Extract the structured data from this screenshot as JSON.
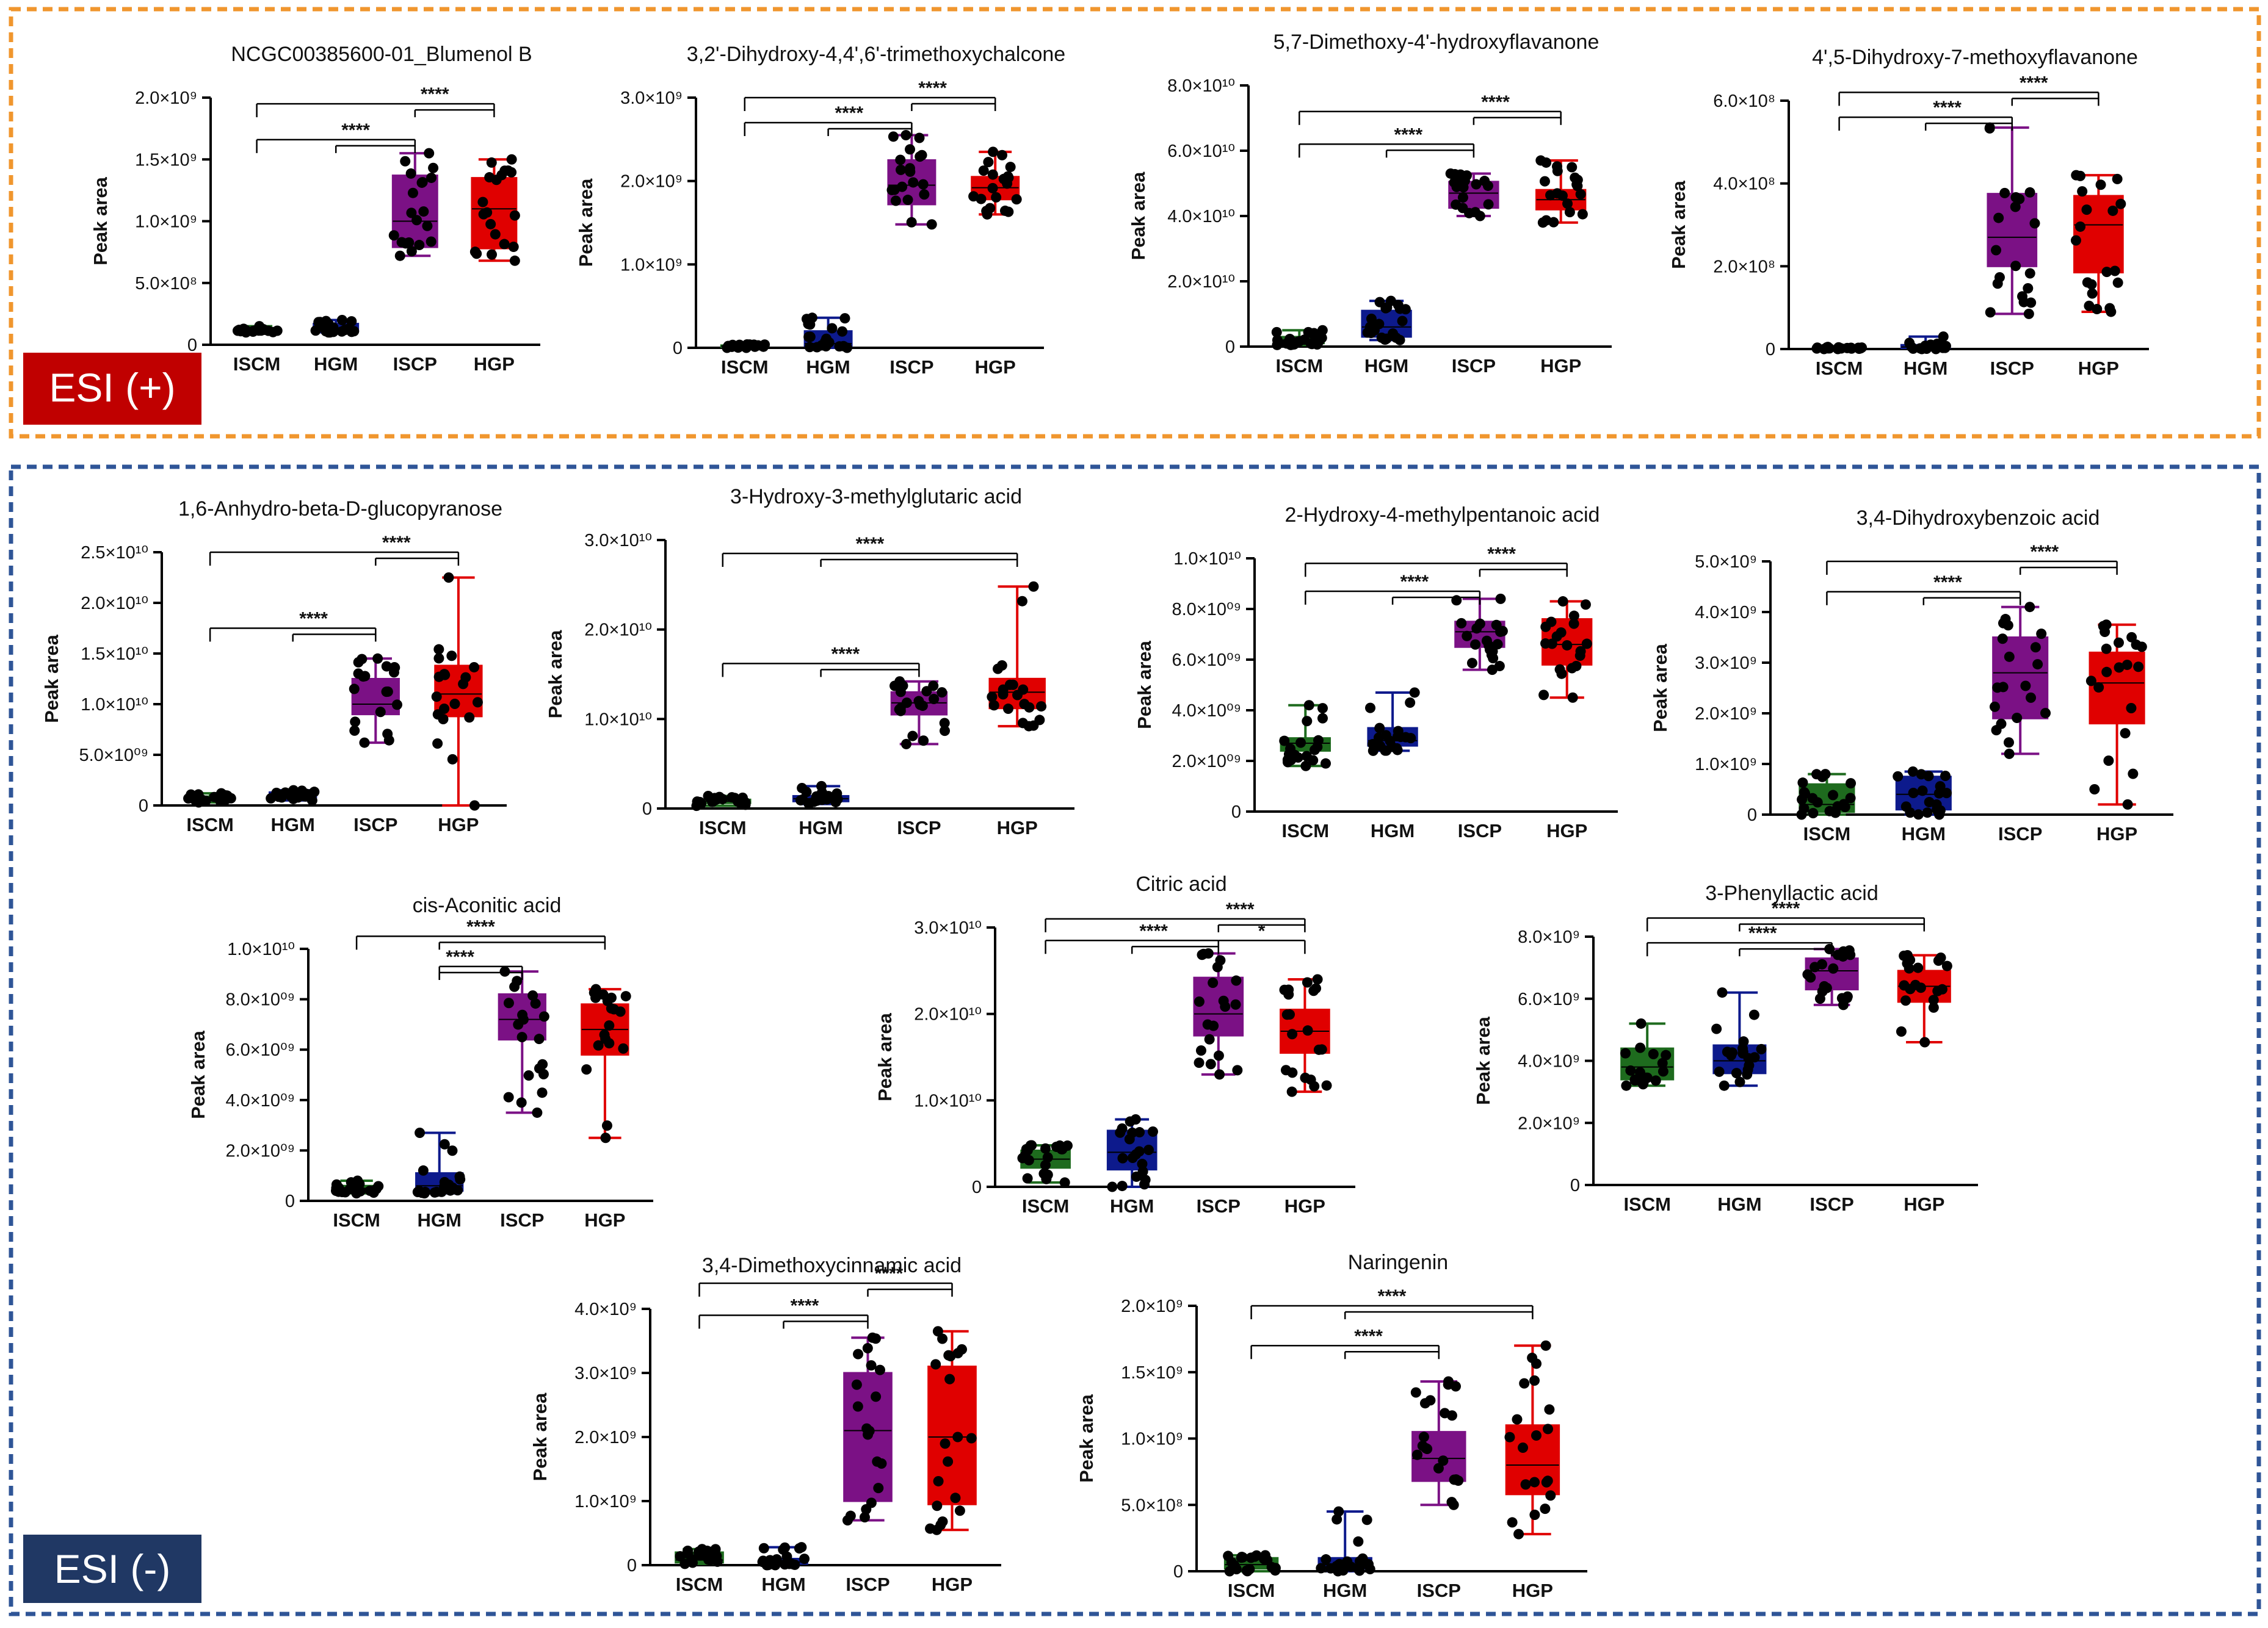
{
  "sections": {
    "pos": {
      "label": "ESI (+)",
      "border_color": "#f0962e",
      "label_bg": "#c00000"
    },
    "neg": {
      "label": "ESI (-)",
      "border_color": "#2f5597",
      "label_bg": "#203864"
    }
  },
  "common": {
    "ylabel": "Peak area",
    "categories": [
      "ISCM",
      "HGM",
      "ISCP",
      "HGP"
    ],
    "group_colors": [
      "#1e6b1e",
      "#0d1a8c",
      "#7b1185",
      "#e00000"
    ]
  },
  "chart_data": [
    {
      "id": "c1",
      "type": "box",
      "title": "NCGC00385600-01_Blumenol B",
      "yexp": 9,
      "ylim": [
        0,
        2.0
      ],
      "ticks": [
        0,
        0.5,
        1.0,
        1.5,
        2.0
      ],
      "tick_labels": [
        "0",
        "5.0×10⁸",
        "1.0×10⁹",
        "1.5×10⁹",
        "2.0×10⁹"
      ],
      "groups": [
        {
          "min": 0.1,
          "q1": 0.11,
          "med": 0.12,
          "q3": 0.13,
          "max": 0.15
        },
        {
          "min": 0.1,
          "q1": 0.11,
          "med": 0.13,
          "q3": 0.17,
          "max": 0.2
        },
        {
          "min": 0.72,
          "q1": 0.79,
          "med": 1.0,
          "q3": 1.37,
          "max": 1.55
        },
        {
          "min": 0.68,
          "q1": 0.78,
          "med": 1.1,
          "q3": 1.35,
          "max": 1.5
        }
      ],
      "sig": [
        {
          "from": 0,
          "to": 3,
          "to2": 2,
          "level": 1.95,
          "label": "****"
        },
        {
          "from": 0,
          "to": 2,
          "to2": 1,
          "level": 1.66,
          "label": "****"
        }
      ]
    },
    {
      "id": "c2",
      "type": "box",
      "title": "3,2'-Dihydroxy-4,4',6'-trimethoxychalcone",
      "yexp": 9,
      "ylim": [
        0,
        3.0
      ],
      "ticks": [
        0,
        1.0,
        2.0,
        3.0
      ],
      "tick_labels": [
        "0",
        "1.0×10⁹",
        "2.0×10⁹",
        "3.0×10⁹"
      ],
      "groups": [
        {
          "min": 0.0,
          "q1": 0.01,
          "med": 0.02,
          "q3": 0.03,
          "max": 0.04
        },
        {
          "min": 0.0,
          "q1": 0.02,
          "med": 0.05,
          "q3": 0.2,
          "max": 0.36
        },
        {
          "min": 1.48,
          "q1": 1.72,
          "med": 1.95,
          "q3": 2.25,
          "max": 2.55
        },
        {
          "min": 1.6,
          "q1": 1.78,
          "med": 1.92,
          "q3": 2.05,
          "max": 2.35
        }
      ],
      "sig": [
        {
          "from": 0,
          "to": 3,
          "to2": 2,
          "level": 3.0,
          "label": "****"
        },
        {
          "from": 0,
          "to": 2,
          "to2": 1,
          "level": 2.7,
          "label": "****"
        }
      ]
    },
    {
      "id": "c3",
      "type": "box",
      "title": "5,7-Dimethoxy-4'-hydroxyflavanone",
      "yexp": 10,
      "ylim": [
        0,
        8.0
      ],
      "ticks": [
        0,
        2.0,
        4.0,
        6.0,
        8.0
      ],
      "tick_labels": [
        "0",
        "2.0×10¹⁰",
        "4.0×10¹⁰",
        "6.0×10¹⁰",
        "8.0×10¹⁰"
      ],
      "groups": [
        {
          "min": 0.05,
          "q1": 0.1,
          "med": 0.2,
          "q3": 0.3,
          "max": 0.5
        },
        {
          "min": 0.2,
          "q1": 0.3,
          "med": 0.6,
          "q3": 1.1,
          "max": 1.4
        },
        {
          "min": 4.0,
          "q1": 4.25,
          "med": 4.7,
          "q3": 5.05,
          "max": 5.3
        },
        {
          "min": 3.8,
          "q1": 4.2,
          "med": 4.5,
          "q3": 4.8,
          "max": 5.7
        }
      ],
      "sig": [
        {
          "from": 0,
          "to": 3,
          "to2": 2,
          "level": 7.2,
          "label": "****"
        },
        {
          "from": 0,
          "to": 2,
          "to2": 1,
          "level": 6.2,
          "label": "****"
        }
      ]
    },
    {
      "id": "c4",
      "type": "box",
      "title": "4',5-Dihydroxy-7-methoxyflavanone",
      "yexp": 8,
      "ylim": [
        0,
        6.0
      ],
      "ticks": [
        0,
        2.0,
        4.0,
        6.0
      ],
      "tick_labels": [
        "0",
        "2.0×10⁸",
        "4.0×10⁸",
        "6.0×10⁸"
      ],
      "groups": [
        {
          "min": 0.0,
          "q1": 0.01,
          "med": 0.02,
          "q3": 0.03,
          "max": 0.05
        },
        {
          "min": 0.0,
          "q1": 0.02,
          "med": 0.05,
          "q3": 0.1,
          "max": 0.3
        },
        {
          "min": 0.85,
          "q1": 2.0,
          "med": 2.7,
          "q3": 3.75,
          "max": 5.35
        },
        {
          "min": 0.9,
          "q1": 1.85,
          "med": 3.0,
          "q3": 3.7,
          "max": 4.2
        }
      ],
      "sig": [
        {
          "from": 0,
          "to": 3,
          "to2": 2,
          "level": 6.2,
          "label": "****"
        },
        {
          "from": 0,
          "to": 2,
          "to2": 1,
          "level": 5.6,
          "label": "****"
        }
      ]
    },
    {
      "id": "c5",
      "type": "box",
      "title": "1,6-Anhydro-beta-D-glucopyranose",
      "yexp": 10,
      "ylim": [
        0,
        2.5
      ],
      "ticks": [
        0,
        0.5,
        1.0,
        1.5,
        2.0,
        2.5
      ],
      "tick_labels": [
        "0",
        "5.0×10⁰⁹",
        "1.0×10¹⁰",
        "1.5×10¹⁰",
        "2.0×10¹⁰",
        "2.5×10¹⁰"
      ],
      "groups": [
        {
          "min": 0.03,
          "q1": 0.05,
          "med": 0.07,
          "q3": 0.09,
          "max": 0.12
        },
        {
          "min": 0.05,
          "q1": 0.08,
          "med": 0.1,
          "q3": 0.13,
          "max": 0.15
        },
        {
          "min": 0.62,
          "q1": 0.9,
          "med": 1.0,
          "q3": 1.25,
          "max": 1.45
        },
        {
          "min": 0.0,
          "q1": 0.88,
          "med": 1.1,
          "q3": 1.38,
          "max": 2.25
        }
      ],
      "sig": [
        {
          "from": 0,
          "to": 3,
          "to2": 2,
          "level": 2.5,
          "label": "****"
        },
        {
          "from": 0,
          "to": 2,
          "to2": 1,
          "level": 1.75,
          "label": "****"
        }
      ]
    },
    {
      "id": "c6",
      "type": "box",
      "title": "3-Hydroxy-3-methylglutaric acid",
      "yexp": 10,
      "ylim": [
        0,
        3.0
      ],
      "ticks": [
        0,
        1.0,
        2.0,
        3.0
      ],
      "tick_labels": [
        "0",
        "1.0×10¹⁰",
        "2.0×10¹⁰",
        "3.0×10¹⁰"
      ],
      "groups": [
        {
          "min": 0.03,
          "q1": 0.06,
          "med": 0.08,
          "q3": 0.1,
          "max": 0.14
        },
        {
          "min": 0.05,
          "q1": 0.08,
          "med": 0.11,
          "q3": 0.14,
          "max": 0.25
        },
        {
          "min": 0.72,
          "q1": 1.05,
          "med": 1.18,
          "q3": 1.3,
          "max": 1.42
        },
        {
          "min": 0.92,
          "q1": 1.12,
          "med": 1.3,
          "q3": 1.45,
          "max": 2.48
        }
      ],
      "sig": [
        {
          "from": 0,
          "to": 3,
          "to2": 1,
          "level": 2.85,
          "label": "****"
        },
        {
          "from": 0,
          "to": 2,
          "to2": 1,
          "level": 1.62,
          "label": "****"
        }
      ]
    },
    {
      "id": "c7",
      "type": "box",
      "title": "2-Hydroxy-4-methylpentanoic acid",
      "yexp": 10,
      "ylim": [
        0,
        1.0
      ],
      "ticks": [
        0,
        0.2,
        0.4,
        0.6,
        0.8,
        1.0
      ],
      "tick_labels": [
        "0",
        "2.0×10⁰⁹",
        "4.0×10⁰⁹",
        "6.0×10⁰⁹",
        "8.0×10⁰⁹",
        "1.0×10¹⁰"
      ],
      "groups": [
        {
          "min": 0.18,
          "q1": 0.24,
          "med": 0.27,
          "q3": 0.29,
          "max": 0.42
        },
        {
          "min": 0.24,
          "q1": 0.26,
          "med": 0.28,
          "q3": 0.33,
          "max": 0.47
        },
        {
          "min": 0.56,
          "q1": 0.65,
          "med": 0.71,
          "q3": 0.75,
          "max": 0.84
        },
        {
          "min": 0.45,
          "q1": 0.58,
          "med": 0.66,
          "q3": 0.76,
          "max": 0.83
        }
      ],
      "sig": [
        {
          "from": 0,
          "to": 3,
          "to2": 2,
          "level": 0.98,
          "label": "****"
        },
        {
          "from": 0,
          "to": 2,
          "to2": 1,
          "level": 0.87,
          "label": "****"
        }
      ]
    },
    {
      "id": "c8",
      "type": "box",
      "title": "3,4-Dihydroxybenzoic acid",
      "yexp": 9,
      "ylim": [
        0,
        5.0
      ],
      "ticks": [
        0,
        1.0,
        2.0,
        3.0,
        4.0,
        5.0
      ],
      "tick_labels": [
        "0",
        "1.0×10⁹",
        "2.0×10⁹",
        "3.0×10⁹",
        "4.0×10⁹",
        "5.0×10⁹"
      ],
      "groups": [
        {
          "min": 0.0,
          "q1": 0.05,
          "med": 0.2,
          "q3": 0.6,
          "max": 0.8
        },
        {
          "min": 0.0,
          "q1": 0.1,
          "med": 0.4,
          "q3": 0.75,
          "max": 0.85
        },
        {
          "min": 1.2,
          "q1": 1.9,
          "med": 2.8,
          "q3": 3.5,
          "max": 4.1
        },
        {
          "min": 0.2,
          "q1": 1.8,
          "med": 2.6,
          "q3": 3.2,
          "max": 3.75
        }
      ],
      "sig": [
        {
          "from": 0,
          "to": 3,
          "to2": 2,
          "level": 5.0,
          "label": "****"
        },
        {
          "from": 0,
          "to": 2,
          "to2": 1,
          "level": 4.4,
          "label": "****"
        }
      ]
    },
    {
      "id": "c9",
      "type": "box",
      "title": "cis-Aconitic acid",
      "yexp": 10,
      "ylim": [
        0,
        1.0
      ],
      "ticks": [
        0,
        0.2,
        0.4,
        0.6,
        0.8,
        1.0
      ],
      "tick_labels": [
        "0",
        "2.0×10⁰⁹",
        "4.0×10⁰⁹",
        "6.0×10⁰⁹",
        "8.0×10⁰⁹",
        "1.0×10¹⁰"
      ],
      "groups": [
        {
          "min": 0.03,
          "q1": 0.04,
          "med": 0.05,
          "q3": 0.06,
          "max": 0.08
        },
        {
          "min": 0.03,
          "q1": 0.04,
          "med": 0.06,
          "q3": 0.11,
          "max": 0.27
        },
        {
          "min": 0.35,
          "q1": 0.64,
          "med": 0.72,
          "q3": 0.82,
          "max": 0.91
        },
        {
          "min": 0.25,
          "q1": 0.58,
          "med": 0.68,
          "q3": 0.78,
          "max": 0.84
        }
      ],
      "sig": [
        {
          "from": 0,
          "to": 3,
          "to2": 1,
          "level": 1.05,
          "label": "****"
        },
        {
          "from": 1,
          "to": 2,
          "to2": 1,
          "level": 0.93,
          "label": "****"
        }
      ]
    },
    {
      "id": "c10",
      "type": "box",
      "title": "Citric acid",
      "yexp": 10,
      "ylim": [
        0,
        3.0
      ],
      "ticks": [
        0,
        1.0,
        2.0,
        3.0
      ],
      "tick_labels": [
        "0",
        "1.0×10¹⁰",
        "2.0×10¹⁰",
        "3.0×10¹⁰"
      ],
      "groups": [
        {
          "min": 0.05,
          "q1": 0.22,
          "med": 0.32,
          "q3": 0.42,
          "max": 0.48
        },
        {
          "min": 0.0,
          "q1": 0.2,
          "med": 0.4,
          "q3": 0.65,
          "max": 0.78
        },
        {
          "min": 1.3,
          "q1": 1.75,
          "med": 2.0,
          "q3": 2.42,
          "max": 2.7
        },
        {
          "min": 1.1,
          "q1": 1.55,
          "med": 1.8,
          "q3": 2.05,
          "max": 2.4
        }
      ],
      "sig": [
        {
          "from": 0,
          "to": 3,
          "to2": 2,
          "level": 3.1,
          "label": "****"
        },
        {
          "from": 0,
          "to": 2,
          "to2": 1,
          "level": 2.85,
          "label": "****"
        },
        {
          "from": 2,
          "to": 3,
          "to2": null,
          "level": 2.85,
          "label": "*"
        }
      ]
    },
    {
      "id": "c11",
      "type": "box",
      "title": "3-Phenyllactic acid",
      "yexp": 9,
      "ylim": [
        0,
        8.0
      ],
      "ticks": [
        0,
        2.0,
        4.0,
        6.0,
        8.0
      ],
      "tick_labels": [
        "0",
        "2.0×10⁹",
        "4.0×10⁹",
        "6.0×10⁹",
        "8.0×10⁹"
      ],
      "groups": [
        {
          "min": 3.2,
          "q1": 3.4,
          "med": 3.8,
          "q3": 4.4,
          "max": 5.2
        },
        {
          "min": 3.2,
          "q1": 3.6,
          "med": 4.0,
          "q3": 4.5,
          "max": 6.2
        },
        {
          "min": 5.8,
          "q1": 6.3,
          "med": 6.9,
          "q3": 7.3,
          "max": 7.6
        },
        {
          "min": 4.6,
          "q1": 5.9,
          "med": 6.4,
          "q3": 6.9,
          "max": 7.4
        }
      ],
      "sig": [
        {
          "from": 0,
          "to": 3,
          "to2": 1,
          "level": 8.6,
          "label": "****"
        },
        {
          "from": 0,
          "to": 2,
          "to2": 1,
          "level": 7.8,
          "label": "****"
        }
      ]
    },
    {
      "id": "c12",
      "type": "box",
      "title": "3,4-Dimethoxycinnamic acid",
      "yexp": 9,
      "ylim": [
        0,
        4.0
      ],
      "ticks": [
        0,
        1.0,
        2.0,
        3.0,
        4.0
      ],
      "tick_labels": [
        "0",
        "1.0×10⁹",
        "2.0×10⁹",
        "3.0×10⁹",
        "4.0×10⁹"
      ],
      "groups": [
        {
          "min": 0.02,
          "q1": 0.04,
          "med": 0.08,
          "q3": 0.2,
          "max": 0.25
        },
        {
          "min": 0.0,
          "q1": 0.02,
          "med": 0.05,
          "q3": 0.1,
          "max": 0.28
        },
        {
          "min": 0.7,
          "q1": 1.0,
          "med": 2.1,
          "q3": 3.0,
          "max": 3.55
        },
        {
          "min": 0.55,
          "q1": 0.95,
          "med": 2.0,
          "q3": 3.1,
          "max": 3.65
        }
      ],
      "sig": [
        {
          "from": 0,
          "to": 3,
          "to2": 2,
          "level": 4.4,
          "label": "****"
        },
        {
          "from": 0,
          "to": 2,
          "to2": 1,
          "level": 3.9,
          "label": "****"
        }
      ]
    },
    {
      "id": "c13",
      "type": "box",
      "title": "Naringenin",
      "yexp": 9,
      "ylim": [
        0,
        2.0
      ],
      "ticks": [
        0,
        0.5,
        1.0,
        1.5,
        2.0
      ],
      "tick_labels": [
        "0",
        "5.0×10⁸",
        "1.0×10⁹",
        "1.5×10⁹",
        "2.0×10⁹"
      ],
      "groups": [
        {
          "min": 0.0,
          "q1": 0.02,
          "med": 0.05,
          "q3": 0.1,
          "max": 0.12
        },
        {
          "min": 0.0,
          "q1": 0.02,
          "med": 0.05,
          "q3": 0.1,
          "max": 0.45
        },
        {
          "min": 0.5,
          "q1": 0.68,
          "med": 0.85,
          "q3": 1.05,
          "max": 1.43
        },
        {
          "min": 0.28,
          "q1": 0.58,
          "med": 0.8,
          "q3": 1.1,
          "max": 1.7
        }
      ],
      "sig": [
        {
          "from": 0,
          "to": 3,
          "to2": 1,
          "level": 2.0,
          "label": "****"
        },
        {
          "from": 0,
          "to": 2,
          "to2": 1,
          "level": 1.7,
          "label": "****"
        }
      ]
    }
  ]
}
